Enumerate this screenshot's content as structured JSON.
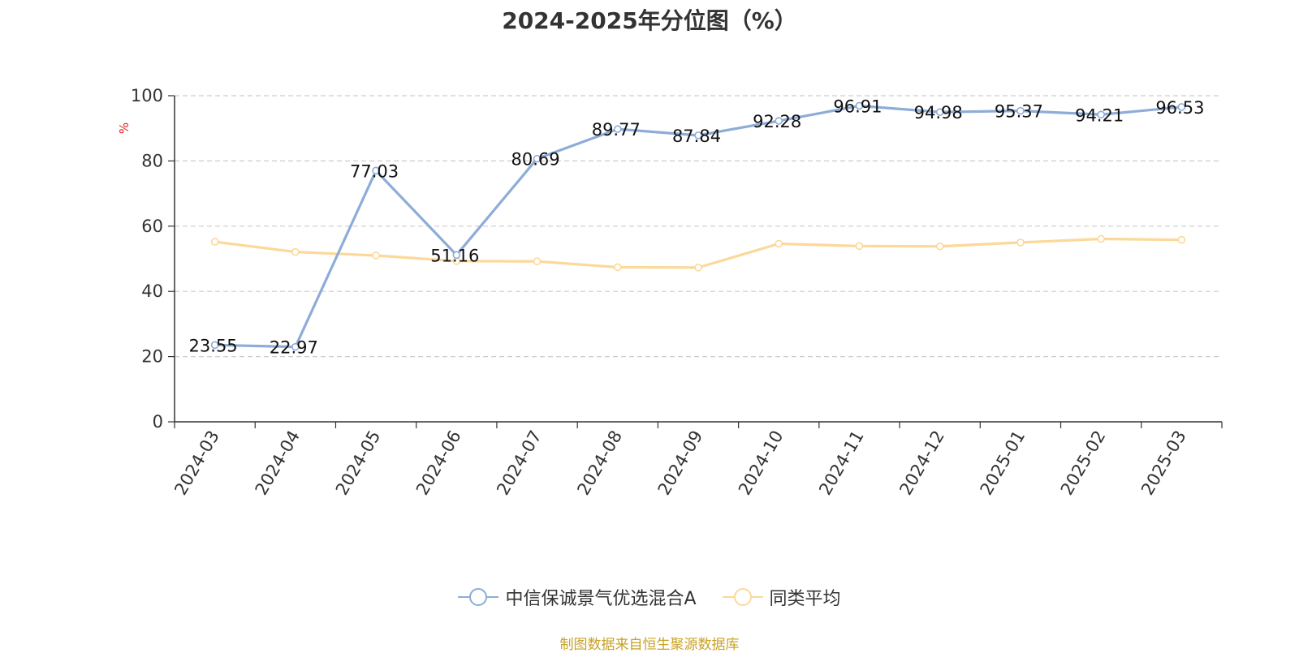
{
  "chart_data": {
    "type": "line",
    "title": "2024-2025年分位图（%）",
    "ylabel": "%",
    "xlabel": "",
    "ylim": [
      0,
      100
    ],
    "yticks": [
      0,
      20,
      40,
      60,
      80,
      100
    ],
    "grid": true,
    "legend_position": "bottom",
    "categories": [
      "2024-03",
      "2024-04",
      "2024-05",
      "2024-06",
      "2024-07",
      "2024-08",
      "2024-09",
      "2024-10",
      "2024-11",
      "2024-12",
      "2025-01",
      "2025-02",
      "2025-03"
    ],
    "series": [
      {
        "name": "中信保诚景气优选混合A",
        "color": "#8eacd8",
        "show_labels": true,
        "values": [
          23.55,
          22.97,
          77.03,
          51.16,
          80.69,
          89.77,
          87.84,
          92.28,
          96.91,
          94.98,
          95.37,
          94.21,
          96.53
        ]
      },
      {
        "name": "同类平均",
        "color": "#fcd899",
        "show_labels": false,
        "values": [
          55.2,
          52.1,
          51.0,
          49.3,
          49.2,
          47.4,
          47.3,
          54.6,
          53.9,
          53.8,
          55.0,
          56.1,
          55.8
        ]
      }
    ]
  },
  "footer": {
    "source": "制图数据来自恒生聚源数据库"
  }
}
